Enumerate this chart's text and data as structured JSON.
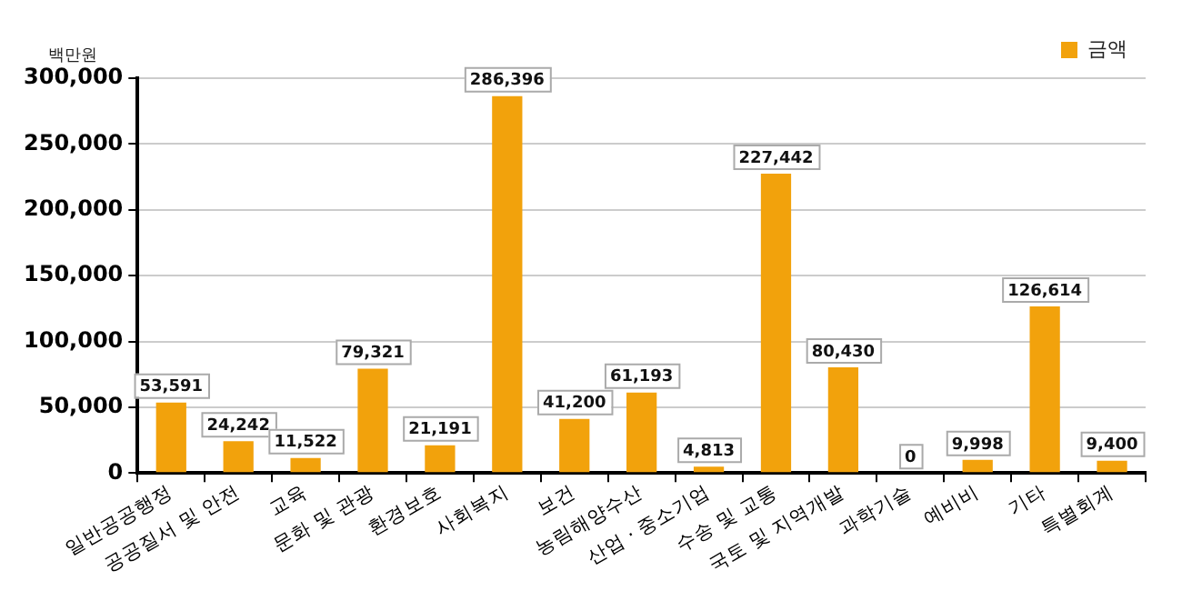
{
  "chart_data": {
    "type": "bar",
    "ylabel": "백만원",
    "categories": [
      "일반공공행정",
      "공공질서 및 안전",
      "교육",
      "문화 및 관광",
      "환경보호",
      "사회복지",
      "보건",
      "농림해양수산",
      "산업 · 중소기업",
      "수송 및 교통",
      "국토 및 지역개발",
      "과학기술",
      "예비비",
      "기타",
      "특별회계"
    ],
    "series": [
      {
        "name": "금액",
        "color": "#f2a20c",
        "values": [
          53591,
          24242,
          11522,
          79321,
          21191,
          286396,
          41200,
          61193,
          4813,
          227442,
          80430,
          0,
          9998,
          126614,
          9400
        ],
        "value_labels": [
          "53,591",
          "24,242",
          "11,522",
          "79,321",
          "21,191",
          "286,396",
          "41,200",
          "61,193",
          "4,813",
          "227,442",
          "80,430",
          "0",
          "9,998",
          "126,614",
          "9,400"
        ]
      }
    ],
    "ylim": [
      0,
      300000
    ],
    "yticks": [
      0,
      {
        "value": 50000,
        "label": "50,000"
      },
      {
        "value": 100000,
        "label": "100,000"
      },
      {
        "value": 150000,
        "label": "150,000"
      },
      {
        "value": 200000,
        "label": "200,000"
      },
      {
        "value": 250000,
        "label": "250,000"
      },
      {
        "value": 300000,
        "label": "300,000"
      }
    ],
    "grid": "y",
    "legend": "top right"
  }
}
